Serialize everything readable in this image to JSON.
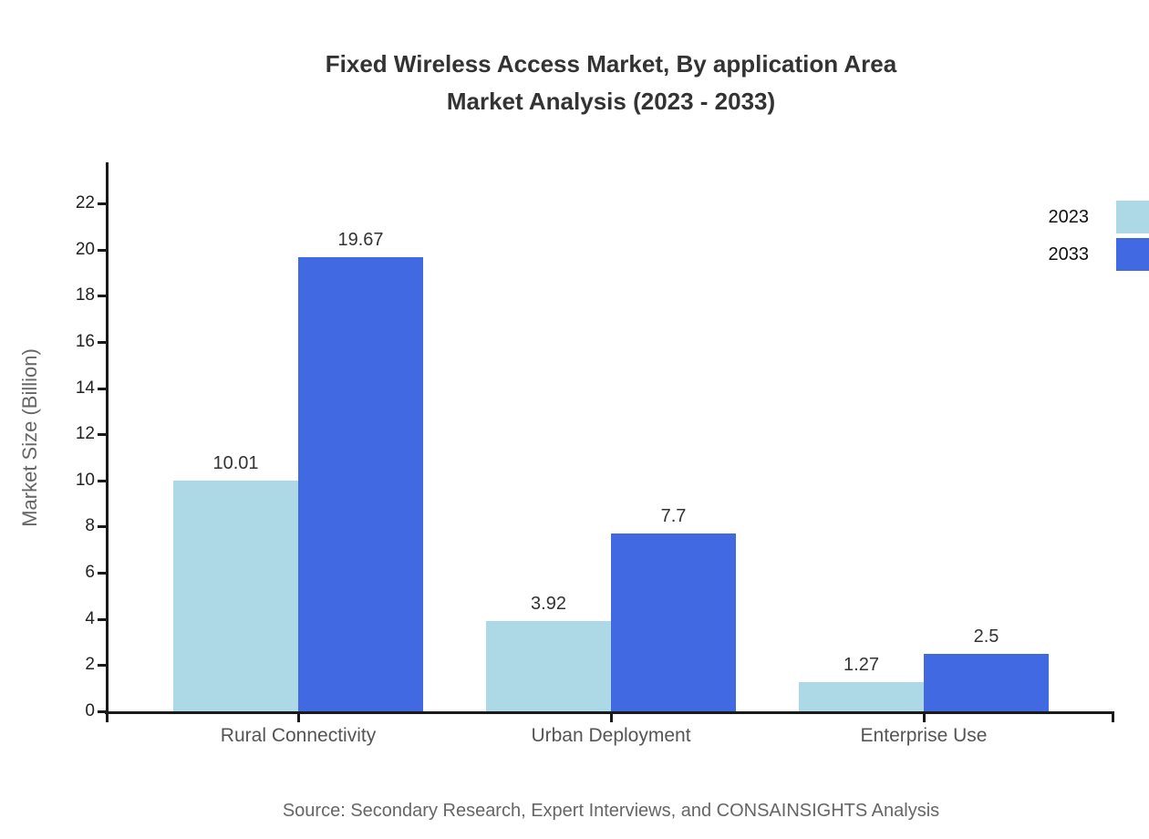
{
  "title": {
    "line1": "Fixed Wireless Access Market, By application Area",
    "line2": "Market Analysis (2023 - 2033)"
  },
  "source": "Source: Secondary Research, Expert Interviews, and CONSAINSIGHTS Analysis",
  "chart_data": {
    "type": "bar",
    "title": "Fixed Wireless Access Market, By application Area Market Analysis (2023 - 2033)",
    "categories": [
      "Rural Connectivity",
      "Urban Deployment",
      "Enterprise Use"
    ],
    "series": [
      {
        "name": "2023",
        "color": "#ADD8E6",
        "values": [
          10.01,
          3.92,
          1.27
        ]
      },
      {
        "name": "2033",
        "color": "#4169E1",
        "values": [
          19.67,
          7.7,
          2.5
        ]
      }
    ],
    "xlabel": "",
    "ylabel": "Market Size (Billion)",
    "ylim": [
      0,
      23.8
    ],
    "yticks": [
      0,
      2,
      4,
      6,
      8,
      10,
      12,
      14,
      16,
      18,
      20,
      22
    ],
    "grid": false,
    "legend_position": "top-right-outside"
  },
  "colors": {
    "series_2023": "#ADD8E6",
    "series_2033": "#4169E1",
    "axis": "#1a1a1a",
    "title_text": "#333333",
    "muted_text": "#666666"
  }
}
